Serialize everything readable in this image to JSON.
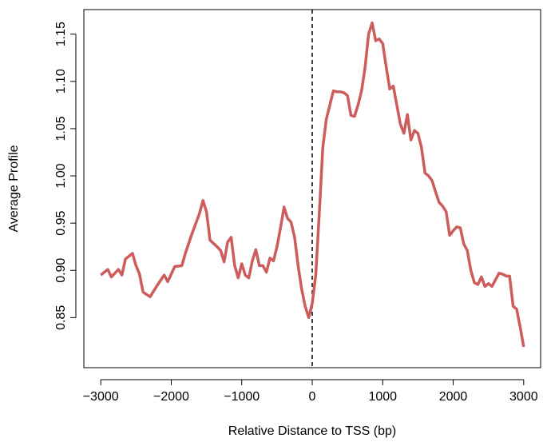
{
  "chart_data": {
    "type": "line",
    "x_label": "Relative Distance to TSS (bp)",
    "y_label": "Average Profile",
    "x": [
      -3000,
      -2900,
      -2850,
      -2750,
      -2700,
      -2650,
      -2550,
      -2500,
      -2450,
      -2400,
      -2300,
      -2200,
      -2100,
      -2050,
      -1950,
      -1850,
      -1800,
      -1700,
      -1600,
      -1550,
      -1500,
      -1450,
      -1350,
      -1300,
      -1250,
      -1200,
      -1150,
      -1100,
      -1050,
      -1000,
      -950,
      -900,
      -850,
      -800,
      -750,
      -700,
      -650,
      -600,
      -550,
      -500,
      -450,
      -400,
      -350,
      -300,
      -250,
      -200,
      -150,
      -100,
      -50,
      0,
      50,
      100,
      150,
      200,
      250,
      300,
      350,
      400,
      450,
      500,
      550,
      600,
      650,
      700,
      750,
      800,
      850,
      900,
      950,
      1000,
      1050,
      1100,
      1150,
      1200,
      1250,
      1300,
      1350,
      1400,
      1450,
      1500,
      1550,
      1600,
      1650,
      1700,
      1750,
      1800,
      1850,
      1900,
      1950,
      2000,
      2050,
      2100,
      2150,
      2200,
      2250,
      2300,
      2350,
      2400,
      2450,
      2500,
      2550,
      2600,
      2650,
      2700,
      2750,
      2800,
      2850,
      2900,
      2950,
      3000
    ],
    "series": [
      {
        "name": "Average Profile",
        "color": "#cd5c5c",
        "values": [
          0.895,
          0.901,
          0.893,
          0.901,
          0.895,
          0.912,
          0.918,
          0.905,
          0.896,
          0.877,
          0.872,
          0.884,
          0.895,
          0.888,
          0.904,
          0.905,
          0.918,
          0.94,
          0.96,
          0.974,
          0.962,
          0.932,
          0.925,
          0.921,
          0.909,
          0.93,
          0.935,
          0.905,
          0.892,
          0.907,
          0.895,
          0.892,
          0.91,
          0.922,
          0.905,
          0.905,
          0.898,
          0.913,
          0.91,
          0.925,
          0.945,
          0.967,
          0.955,
          0.951,
          0.935,
          0.905,
          0.88,
          0.862,
          0.85,
          0.865,
          0.895,
          0.96,
          1.03,
          1.06,
          1.075,
          1.09,
          1.089,
          1.089,
          1.088,
          1.085,
          1.064,
          1.063,
          1.075,
          1.09,
          1.115,
          1.15,
          1.162,
          1.143,
          1.145,
          1.14,
          1.115,
          1.092,
          1.095,
          1.075,
          1.055,
          1.045,
          1.065,
          1.038,
          1.048,
          1.045,
          1.03,
          1.003,
          1.0,
          0.995,
          0.983,
          0.972,
          0.968,
          0.962,
          0.937,
          0.942,
          0.946,
          0.945,
          0.928,
          0.921,
          0.9,
          0.887,
          0.885,
          0.893,
          0.883,
          0.886,
          0.883,
          0.89,
          0.897,
          0.896,
          0.894,
          0.894,
          0.862,
          0.859,
          0.84,
          0.819
        ]
      }
    ],
    "vline": 0,
    "xlim": [
      -3240,
      3240
    ],
    "ylim": [
      0.797,
      1.176
    ],
    "xticks": [
      {
        "value": -3000,
        "label": "−3000"
      },
      {
        "value": -2000,
        "label": "−2000"
      },
      {
        "value": -1000,
        "label": "−1000"
      },
      0,
      1000,
      2000,
      3000
    ],
    "yticks": [
      0.85,
      {
        "value": 0.9,
        "label": "0.90"
      },
      0.95,
      {
        "value": 1,
        "label": "1.00"
      },
      1.05,
      {
        "value": 1.1,
        "label": "1.10"
      },
      1.15
    ]
  }
}
